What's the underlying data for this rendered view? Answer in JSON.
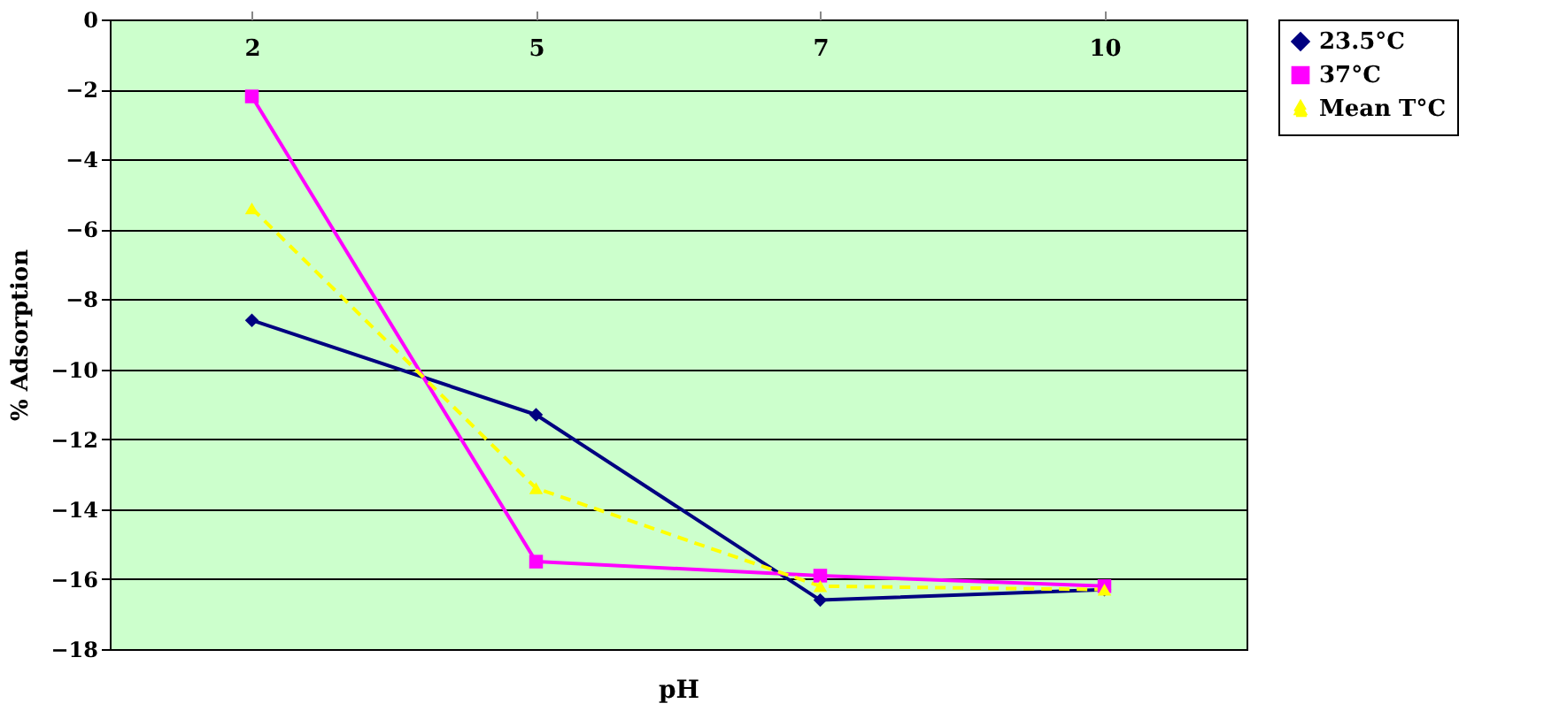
{
  "chart_data": {
    "type": "line",
    "xlabel": "pH",
    "ylabel": "% Adsorption",
    "categories": [
      "2",
      "5",
      "7",
      "10"
    ],
    "series": [
      {
        "name": "23.5°C",
        "color": "#000080",
        "marker": "diamond",
        "line_style": "solid",
        "values": [
          -8.6,
          -11.3,
          -16.6,
          -16.3
        ]
      },
      {
        "name": "37°C",
        "color": "#ff00ff",
        "marker": "square",
        "line_style": "solid",
        "values": [
          -2.2,
          -15.5,
          -15.9,
          -16.2
        ]
      },
      {
        "name": "Mean T°C",
        "color": "#ffff00",
        "marker": "triangle",
        "line_style": "dashed",
        "values": [
          -5.4,
          -13.4,
          -16.2,
          -16.3
        ]
      }
    ],
    "ylim": [
      -18,
      0
    ],
    "yticks": [
      0,
      -2,
      -4,
      -6,
      -8,
      -10,
      -12,
      -14,
      -16,
      -18
    ],
    "grid": "y",
    "legend": "right"
  }
}
